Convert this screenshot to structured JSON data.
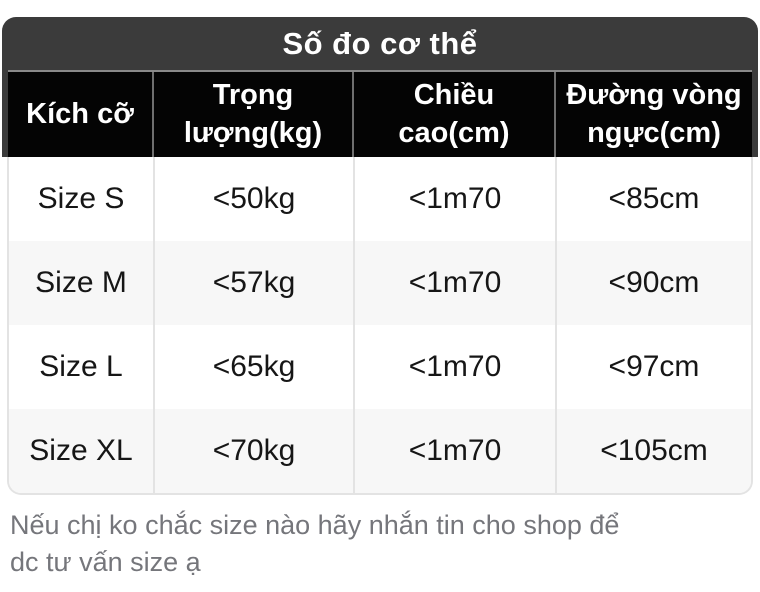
{
  "colors": {
    "page_bg": "#ffffff",
    "title_bar_bg": "#3b3b3b",
    "header_bg": "#040404",
    "header_text": "#ffffff",
    "body_text": "#161616",
    "row_bg": "#ffffff",
    "row_alt_bg": "#f7f7f7",
    "divider_light": "#e3e3e3",
    "divider_dark": "#6f6f6f",
    "note_text": "#75767b"
  },
  "size_chart": {
    "title": "Số đo cơ thể",
    "columns": [
      "Kích cỡ",
      "Trọng lượng(kg)",
      "Chiều cao(cm)",
      "Đường vòng ngực(cm)"
    ],
    "rows": [
      [
        "Size S",
        "<50kg",
        "<1m70",
        "<85cm"
      ],
      [
        "Size M",
        "<57kg",
        "<1m70",
        "<90cm"
      ],
      [
        "Size L",
        "<65kg",
        "<1m70",
        "<97cm"
      ],
      [
        "Size XL",
        "<70kg",
        "<1m70",
        "<105cm"
      ]
    ]
  },
  "note": {
    "lines": [
      "Nếu chị ko chắc size nào hãy nhắn tin cho shop để",
      "dc tư vấn size ạ"
    ]
  }
}
